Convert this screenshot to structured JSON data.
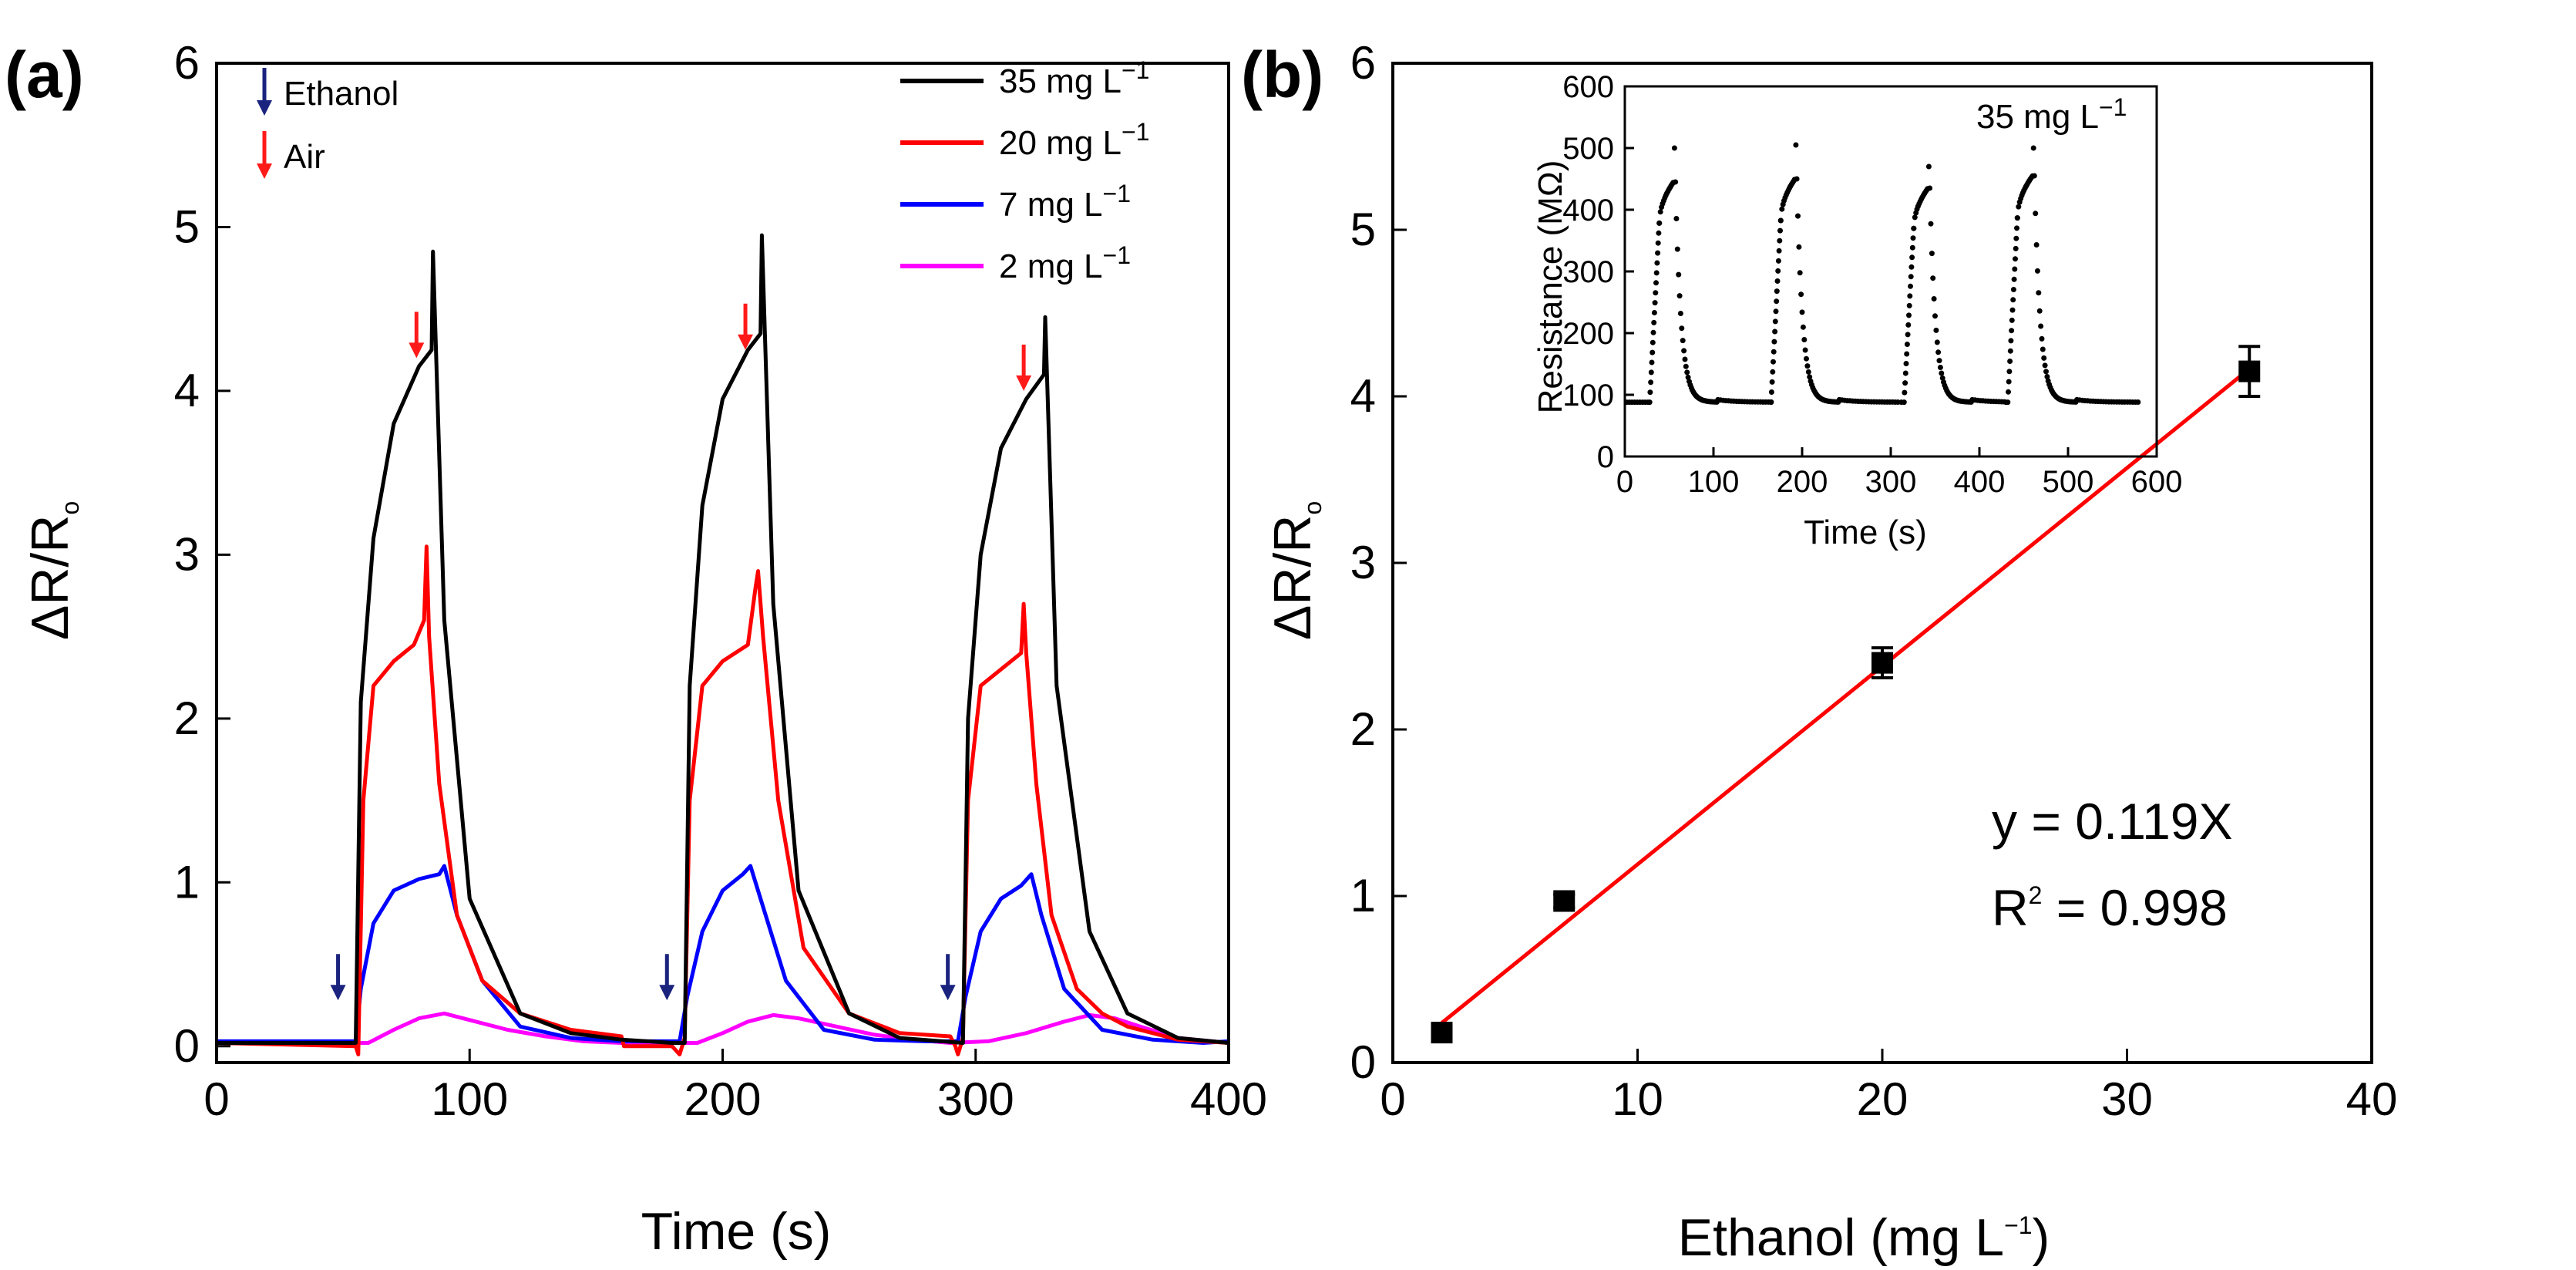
{
  "panels": {
    "a": {
      "label": "(a)"
    },
    "b": {
      "label": "(b)"
    }
  },
  "colors": {
    "35": "#000000",
    "20": "#ff0000",
    "7": "#0000ff",
    "2": "#ff00ff",
    "ethanol_arrow": "#1a237e",
    "air_arrow": "#ff1a1a",
    "fit_line": "#ff0000",
    "inset_points": "#000000"
  },
  "chart_data": [
    {
      "id": "a",
      "type": "line",
      "title": "",
      "xlabel": "Time (s)",
      "ylabel": "ΔR/R",
      "ylabel_sub": "o",
      "xlim": [
        0,
        400
      ],
      "ylim": [
        -0.1,
        6
      ],
      "xticks": [
        0,
        100,
        200,
        300,
        400
      ],
      "yticks": [
        0,
        1,
        2,
        3,
        4,
        5,
        6
      ],
      "arrow_legend": [
        {
          "label": "Ethanol",
          "color_key": "ethanol_arrow",
          "direction": "down"
        },
        {
          "label": "Air",
          "color_key": "air_arrow",
          "direction": "down"
        }
      ],
      "ethanol_arrows_x": [
        48,
        178,
        289
      ],
      "ethanol_arrow_y": 0.28,
      "air_arrows_x": [
        79,
        209,
        319
      ],
      "air_arrows_y": [
        4.2,
        4.25,
        4.0
      ],
      "series": [
        {
          "name": "35 mg L",
          "sup": "−1",
          "color_key": "35",
          "x": [
            0,
            55,
            57,
            62,
            70,
            80,
            85,
            85.5,
            90,
            100,
            120,
            140,
            160,
            180,
            185,
            187,
            192,
            200,
            210,
            215,
            215.5,
            220,
            230,
            250,
            270,
            295,
            297,
            302,
            310,
            320,
            327,
            327.5,
            332,
            345,
            360,
            380,
            400
          ],
          "y": [
            0.02,
            0.02,
            2.1,
            3.1,
            3.8,
            4.15,
            4.25,
            4.85,
            2.6,
            0.9,
            0.2,
            0.08,
            0.04,
            0.02,
            0.02,
            2.2,
            3.3,
            3.95,
            4.25,
            4.35,
            4.95,
            2.7,
            0.95,
            0.2,
            0.05,
            0.02,
            2.0,
            3.0,
            3.65,
            3.95,
            4.1,
            4.45,
            2.2,
            0.7,
            0.2,
            0.05,
            0.02
          ]
        },
        {
          "name": "20 mg L",
          "sup": "−1",
          "color_key": "20",
          "x": [
            0,
            55,
            56,
            58,
            62,
            70,
            78,
            82,
            83,
            84,
            88,
            95,
            105,
            120,
            140,
            160,
            161,
            180,
            183,
            185,
            187,
            192,
            200,
            210,
            213,
            214,
            216,
            222,
            232,
            250,
            270,
            290,
            292,
            293,
            295,
            297,
            302,
            310,
            318,
            319,
            320,
            324,
            330,
            340,
            350,
            360,
            380,
            400
          ],
          "y": [
            0.02,
            0.0,
            -0.05,
            1.5,
            2.2,
            2.35,
            2.45,
            2.6,
            3.05,
            2.5,
            1.6,
            0.8,
            0.4,
            0.2,
            0.1,
            0.06,
            0.0,
            0.0,
            -0.05,
            0.05,
            1.5,
            2.2,
            2.35,
            2.45,
            2.8,
            2.9,
            2.5,
            1.5,
            0.6,
            0.2,
            0.08,
            0.06,
            0.0,
            -0.05,
            0.05,
            1.5,
            2.2,
            2.3,
            2.4,
            2.7,
            2.4,
            1.6,
            0.8,
            0.35,
            0.2,
            0.12,
            0.04,
            0.02
          ]
        },
        {
          "name": "7 mg L",
          "sup": "−1",
          "color_key": "7",
          "x": [
            0,
            55,
            57,
            62,
            70,
            80,
            88,
            90,
            95,
            105,
            120,
            140,
            160,
            183,
            186,
            192,
            200,
            208,
            211,
            215,
            225,
            240,
            260,
            280,
            293,
            296,
            302,
            310,
            318,
            322,
            326,
            335,
            350,
            370,
            390,
            400
          ],
          "y": [
            0.03,
            0.03,
            0.35,
            0.75,
            0.95,
            1.02,
            1.05,
            1.1,
            0.8,
            0.4,
            0.12,
            0.05,
            0.03,
            0.03,
            0.3,
            0.7,
            0.95,
            1.05,
            1.1,
            0.9,
            0.4,
            0.1,
            0.04,
            0.03,
            0.03,
            0.3,
            0.7,
            0.9,
            0.98,
            1.05,
            0.8,
            0.35,
            0.1,
            0.04,
            0.02,
            0.03
          ]
        },
        {
          "name": "2 mg L",
          "sup": "−1",
          "color_key": "2",
          "x": [
            0,
            60,
            70,
            80,
            90,
            100,
            115,
            130,
            145,
            160,
            190,
            200,
            210,
            220,
            230,
            245,
            260,
            275,
            290,
            305,
            320,
            335,
            345,
            355,
            365,
            380,
            400
          ],
          "y": [
            0.02,
            0.02,
            0.1,
            0.17,
            0.2,
            0.16,
            0.1,
            0.06,
            0.03,
            0.02,
            0.02,
            0.08,
            0.15,
            0.19,
            0.17,
            0.12,
            0.07,
            0.04,
            0.02,
            0.03,
            0.08,
            0.15,
            0.19,
            0.17,
            0.12,
            0.05,
            0.02
          ]
        }
      ]
    },
    {
      "id": "b",
      "type": "scatter",
      "title": "",
      "xlabel": "Ethanol (mg L",
      "xlabel_sup": "−1",
      "xlabel_end": ")",
      "ylabel": "ΔR/R",
      "ylabel_sub": "o",
      "xlim": [
        0,
        40
      ],
      "ylim": [
        0,
        6
      ],
      "xticks": [
        0,
        10,
        20,
        30,
        40
      ],
      "yticks": [
        0,
        1,
        2,
        3,
        4,
        5,
        6
      ],
      "points": [
        {
          "x": 2,
          "y": 0.18,
          "err": 0.05
        },
        {
          "x": 7,
          "y": 0.97,
          "err": 0.04
        },
        {
          "x": 20,
          "y": 2.4,
          "err": 0.09
        },
        {
          "x": 35,
          "y": 4.15,
          "err": 0.15
        }
      ],
      "fit": {
        "slope": 0.119,
        "x_range": [
          2,
          35
        ]
      },
      "equation": "y = 0.119X",
      "r2_prefix": "R",
      "r2_sup": "2",
      "r2_suffix": " = 0.998"
    },
    {
      "id": "inset",
      "type": "scatter",
      "title": "",
      "annotation": "35 mg L",
      "annotation_sup": "−1",
      "xlabel": "Time (s)",
      "ylabel": "Resistance (MΩ)",
      "xlim": [
        0,
        600
      ],
      "ylim": [
        0,
        600
      ],
      "xticks": [
        0,
        100,
        200,
        300,
        400,
        500,
        600
      ],
      "yticks": [
        0,
        100,
        200,
        300,
        400,
        500,
        600
      ],
      "baseline": 88,
      "cycles": [
        {
          "start": 28,
          "top_end": 55,
          "peak": 500,
          "plateau": 445,
          "end": 165
        },
        {
          "start": 165,
          "top_end": 192,
          "peak": 505,
          "plateau": 450,
          "end": 310
        },
        {
          "start": 315,
          "top_end": 342,
          "peak": 470,
          "plateau": 435,
          "end": 428
        },
        {
          "start": 432,
          "top_end": 460,
          "peak": 500,
          "plateau": 455,
          "end": 580
        }
      ]
    }
  ]
}
